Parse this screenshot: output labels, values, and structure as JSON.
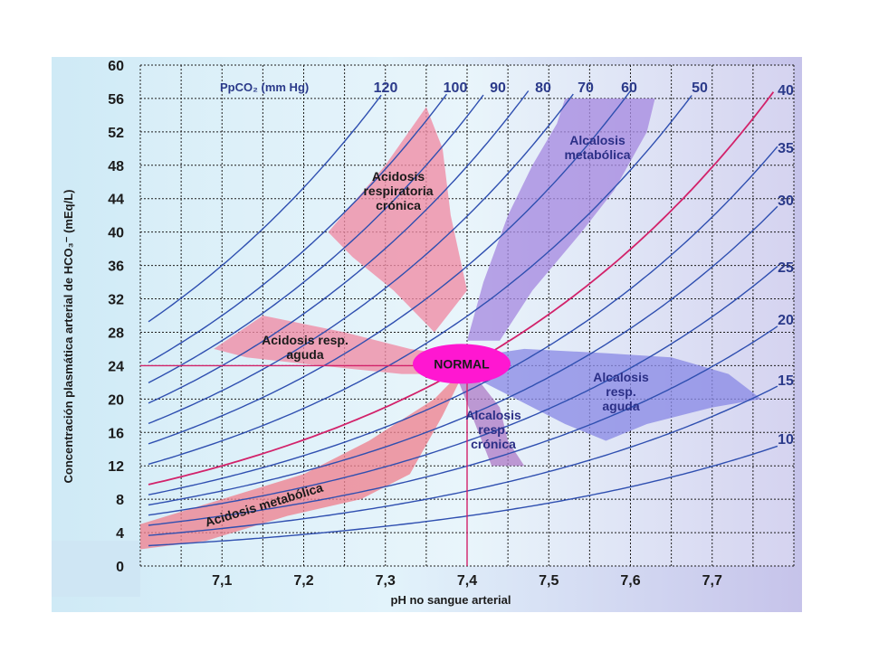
{
  "chart_data": {
    "type": "line",
    "xlabel": "pH no sangue arterial",
    "ylabel": "Concentración plasmática arterial de HCO₃⁻ (mEq/L)",
    "isobar_title": "PpCO₂ (mm Hg)",
    "xlim": [
      7.0,
      7.8
    ],
    "ylim": [
      0,
      60
    ],
    "x_ticks": [
      "7,1",
      "7,2",
      "7,3",
      "7,4",
      "7,5",
      "7,6",
      "7,7"
    ],
    "x_tick_values": [
      7.1,
      7.2,
      7.3,
      7.4,
      7.5,
      7.6,
      7.7
    ],
    "y_ticks": [
      0,
      4,
      8,
      12,
      16,
      20,
      24,
      28,
      32,
      36,
      40,
      44,
      48,
      52,
      56,
      60
    ],
    "grid": true,
    "series": [
      {
        "name": "120",
        "pco2": 120
      },
      {
        "name": "100",
        "pco2": 100
      },
      {
        "name": "90",
        "pco2": 90
      },
      {
        "name": "80",
        "pco2": 80
      },
      {
        "name": "70",
        "pco2": 70
      },
      {
        "name": "60",
        "pco2": 60
      },
      {
        "name": "50",
        "pco2": 50
      },
      {
        "name": "40",
        "pco2": 40
      },
      {
        "name": "35",
        "pco2": 35
      },
      {
        "name": "30",
        "pco2": 30
      },
      {
        "name": "25",
        "pco2": 25
      },
      {
        "name": "20",
        "pco2": 20
      },
      {
        "name": "15",
        "pco2": 15
      },
      {
        "name": "10",
        "pco2": 10
      }
    ],
    "normal_point": {
      "label": "NORMAL",
      "ph": 7.4,
      "hco3": 24
    },
    "regions": [
      {
        "label_lines": [
          "Acidosis",
          "respiratoria",
          "crónica"
        ],
        "color": "#f08aa4",
        "polygon": [
          [
            7.23,
            40
          ],
          [
            7.3,
            48
          ],
          [
            7.35,
            55
          ],
          [
            7.37,
            50
          ],
          [
            7.38,
            42
          ],
          [
            7.4,
            33
          ],
          [
            7.36,
            28
          ],
          [
            7.31,
            33
          ],
          [
            7.26,
            37
          ]
        ]
      },
      {
        "label_lines": [
          "Alcalosis",
          "metabólica"
        ],
        "color": "#a78ae0",
        "polygon": [
          [
            7.4,
            27
          ],
          [
            7.42,
            34
          ],
          [
            7.45,
            42
          ],
          [
            7.48,
            48
          ],
          [
            7.51,
            53
          ],
          [
            7.52,
            56
          ],
          [
            7.63,
            56
          ],
          [
            7.62,
            52
          ],
          [
            7.58,
            45
          ],
          [
            7.54,
            40
          ],
          [
            7.48,
            33
          ],
          [
            7.44,
            27
          ]
        ]
      },
      {
        "label_lines": [
          "Acidosis resp.",
          "aguda"
        ],
        "color": "#f08aa4",
        "polygon": [
          [
            7.09,
            26
          ],
          [
            7.15,
            30
          ],
          [
            7.25,
            28
          ],
          [
            7.33,
            26
          ],
          [
            7.4,
            25
          ],
          [
            7.4,
            23
          ],
          [
            7.32,
            23
          ],
          [
            7.22,
            24
          ],
          [
            7.13,
            25
          ]
        ]
      },
      {
        "label_lines": [
          "Alcalosis",
          "resp.",
          "aguda"
        ],
        "color": "#8a8ae6",
        "polygon": [
          [
            7.4,
            25
          ],
          [
            7.47,
            26
          ],
          [
            7.57,
            25.5
          ],
          [
            7.65,
            25
          ],
          [
            7.72,
            23
          ],
          [
            7.76,
            20
          ],
          [
            7.7,
            19
          ],
          [
            7.62,
            17
          ],
          [
            7.57,
            15
          ],
          [
            7.52,
            17
          ],
          [
            7.46,
            20
          ],
          [
            7.4,
            23
          ]
        ]
      },
      {
        "label_lines": [
          "Alcalosis",
          "resp.",
          "crónica"
        ],
        "color": "#b07ec8",
        "polygon": [
          [
            7.4,
            24
          ],
          [
            7.44,
            19
          ],
          [
            7.45,
            15
          ],
          [
            7.47,
            12
          ],
          [
            7.43,
            12
          ],
          [
            7.41,
            17
          ],
          [
            7.39,
            22
          ]
        ]
      },
      {
        "label_lines": [
          "Acidosis metabólica"
        ],
        "color": "#ee8290",
        "polygon": [
          [
            7.0,
            5
          ],
          [
            7.1,
            8
          ],
          [
            7.2,
            11
          ],
          [
            7.28,
            15
          ],
          [
            7.36,
            20
          ],
          [
            7.4,
            24
          ],
          [
            7.37,
            18
          ],
          [
            7.33,
            11
          ],
          [
            7.27,
            8
          ],
          [
            7.18,
            6
          ],
          [
            7.08,
            3
          ],
          [
            7.0,
            2
          ]
        ]
      }
    ]
  }
}
